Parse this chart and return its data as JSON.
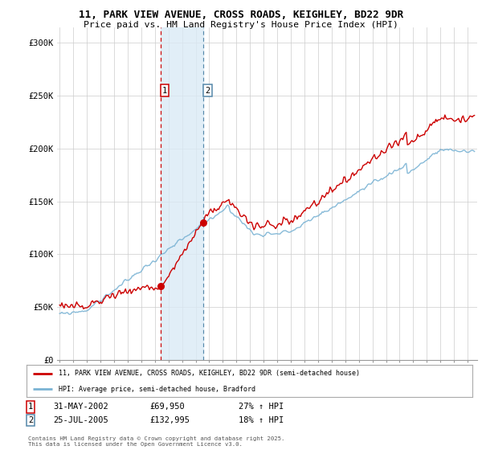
{
  "title_line1": "11, PARK VIEW AVENUE, CROSS ROADS, KEIGHLEY, BD22 9DR",
  "title_line2": "Price paid vs. HM Land Registry's House Price Index (HPI)",
  "ylabel_ticks": [
    "£0",
    "£50K",
    "£100K",
    "£150K",
    "£200K",
    "£250K",
    "£300K"
  ],
  "ytick_values": [
    0,
    50000,
    100000,
    150000,
    200000,
    250000,
    300000
  ],
  "ylim": [
    0,
    315000
  ],
  "xlim_start": 1994.8,
  "xlim_end": 2025.7,
  "sale1_date": 2002.42,
  "sale1_price": 69950,
  "sale2_date": 2005.57,
  "sale2_price": 132995,
  "sale1_date_str": "31-MAY-2002",
  "sale1_price_str": "£69,950",
  "sale1_hpi_str": "27% ↑ HPI",
  "sale2_date_str": "25-JUL-2005",
  "sale2_price_str": "£132,995",
  "sale2_hpi_str": "18% ↑ HPI",
  "hpi_color": "#7ab3d4",
  "price_color": "#cc0000",
  "background_color": "#ffffff",
  "grid_color": "#cccccc",
  "shade_color": "#daeaf5",
  "vline1_color": "#cc0000",
  "vline2_color": "#5588aa",
  "legend_label_price": "11, PARK VIEW AVENUE, CROSS ROADS, KEIGHLEY, BD22 9DR (semi-detached house)",
  "legend_label_hpi": "HPI: Average price, semi-detached house, Bradford",
  "footer": "Contains HM Land Registry data © Crown copyright and database right 2025.\nThis data is licensed under the Open Government Licence v3.0."
}
